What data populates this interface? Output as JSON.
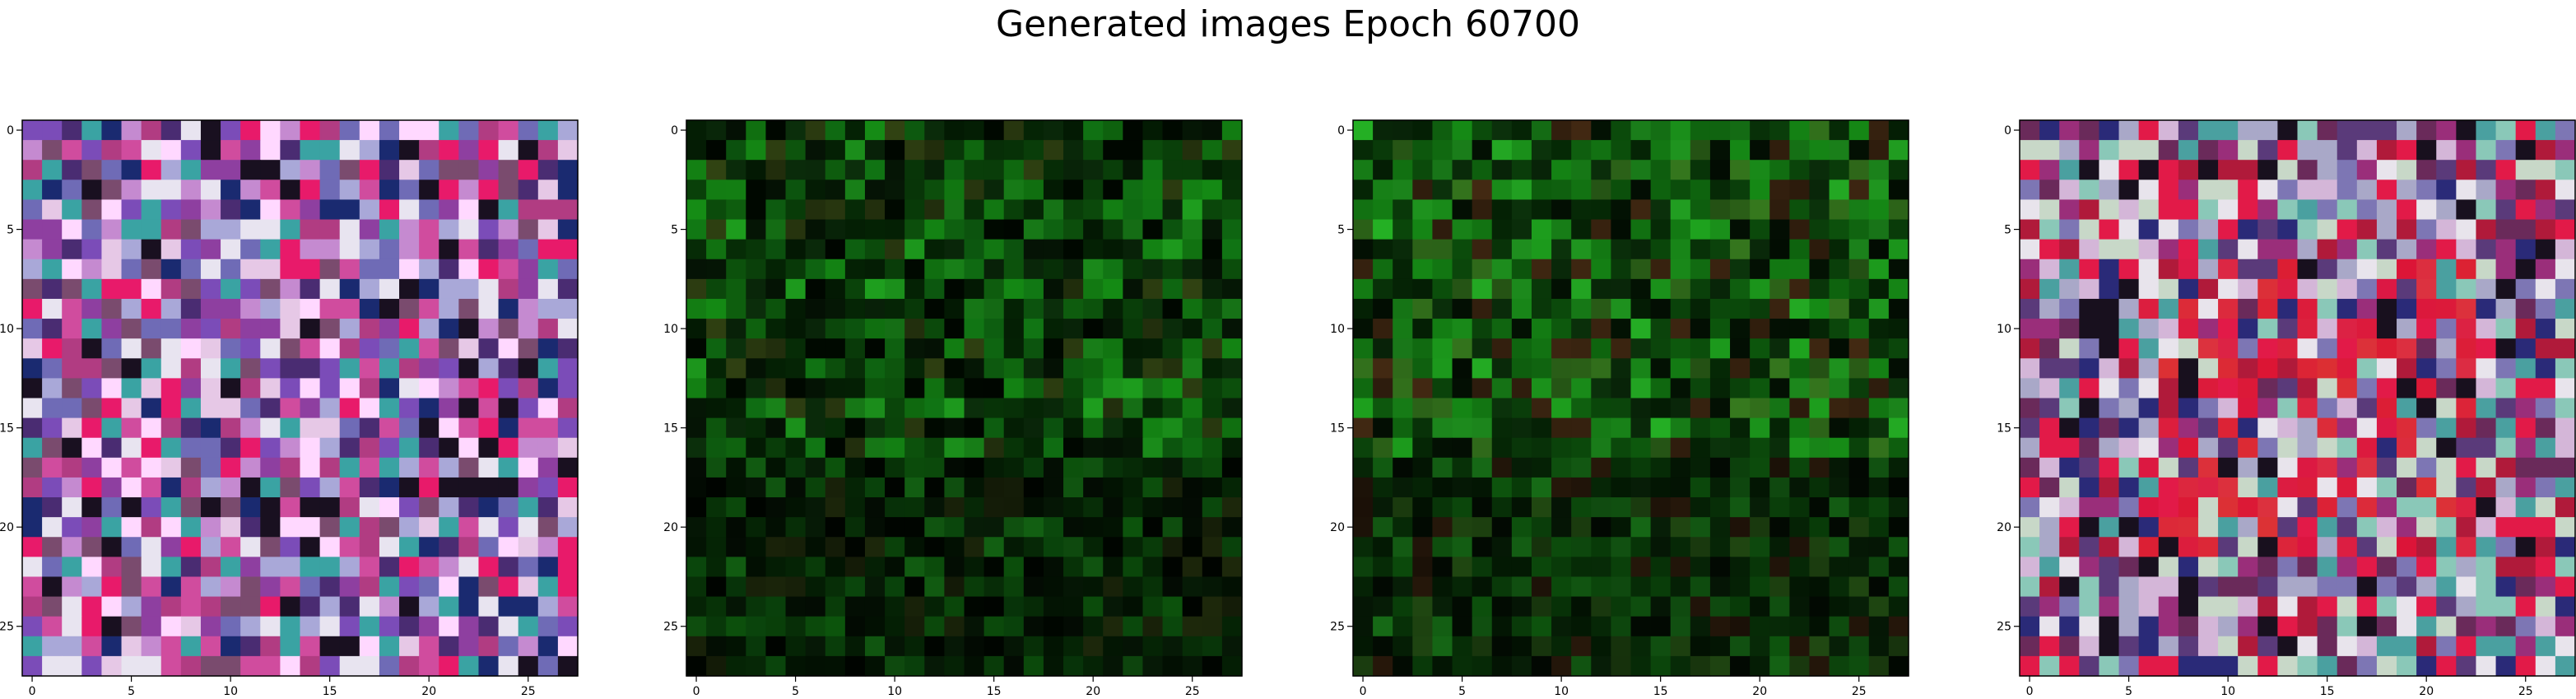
{
  "figure": {
    "title": "Generated images Epoch 60700"
  },
  "chart_data": [
    {
      "type": "heatmap",
      "title": "",
      "xlabel": "",
      "ylabel": "",
      "grid": false,
      "x_ticks": [
        "0",
        "5",
        "10",
        "15",
        "20",
        "25"
      ],
      "y_ticks": [
        "0",
        "5",
        "10",
        "15",
        "20",
        "25"
      ],
      "xlim": [
        -0.5,
        27.5
      ],
      "ylim": [
        27.5,
        -0.5
      ],
      "size": 28,
      "palette": [
        "#7b4cb8",
        "#c58ad0",
        "#a9a8d8",
        "#e6c8e6",
        "#d04c9e",
        "#8e3fa0",
        "#6f6bb6",
        "#b13c82",
        "#4a2c72",
        "#e8e4f0",
        "#3aa3a3",
        "#e81a6a",
        "#191020",
        "#7a4b6e",
        "#1a2a70",
        "#ffd8ff"
      ],
      "description_style": "colorful purple-pink noise"
    },
    {
      "type": "heatmap",
      "title": "",
      "xlabel": "",
      "ylabel": "",
      "grid": false,
      "x_ticks": [
        "0",
        "5",
        "10",
        "15",
        "20",
        "25"
      ],
      "y_ticks": [
        "0",
        "5",
        "10",
        "15",
        "20",
        "25"
      ],
      "xlim": [
        -0.5,
        27.5
      ],
      "ylim": [
        27.5,
        -0.5
      ],
      "size": 28,
      "palette": [
        "#0b4a0b",
        "#0f6a12",
        "#083808",
        "#042004",
        "#127a12",
        "#0a2a0a",
        "#1a8a1a",
        "#051505",
        "#000800",
        "#2a3a10"
      ],
      "description_style": "dark green noise"
    },
    {
      "type": "heatmap",
      "title": "",
      "xlabel": "",
      "ylabel": "",
      "grid": false,
      "x_ticks": [
        "0",
        "5",
        "10",
        "15",
        "20",
        "25"
      ],
      "y_ticks": [
        "0",
        "5",
        "10",
        "15",
        "20",
        "25"
      ],
      "xlim": [
        -0.5,
        27.5
      ],
      "ylim": [
        27.5,
        -0.5
      ],
      "size": 28,
      "palette": [
        "#0d5a0d",
        "#137a13",
        "#0a3f0a",
        "#052505",
        "#1a8e1a",
        "#0a2d0a",
        "#209a20",
        "#031003",
        "#2f6a1a",
        "#3a2410"
      ],
      "description_style": "green noise"
    },
    {
      "type": "heatmap",
      "title": "",
      "xlabel": "",
      "ylabel": "",
      "grid": false,
      "x_ticks": [
        "0",
        "5",
        "10",
        "15",
        "20",
        "25"
      ],
      "y_ticks": [
        "0",
        "5",
        "10",
        "15",
        "20",
        "25"
      ],
      "xlim": [
        -0.5,
        27.5
      ],
      "ylim": [
        27.5,
        -0.5
      ],
      "size": 28,
      "palette": [
        "#a9a8c8",
        "#d4b6d8",
        "#7d76b4",
        "#e21a48",
        "#b01a3a",
        "#5a3a7a",
        "#2a2a78",
        "#e8e4ec",
        "#9a2e7a",
        "#4aa0a0",
        "#18101e",
        "#c8d8c8",
        "#6a2a5a",
        "#8ac8b8"
      ],
      "description_style": "pastel noise with red center"
    }
  ]
}
